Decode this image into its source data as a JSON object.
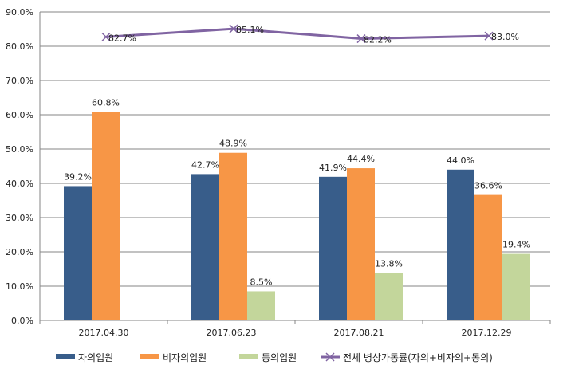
{
  "chart_data": {
    "type": "bar",
    "categories": [
      "2017.04.30",
      "2017.06.23",
      "2017.08.21",
      "2017.12.29"
    ],
    "ylim": [
      0,
      90
    ],
    "yticks": [
      "0.0%",
      "10.0%",
      "20.0%",
      "30.0%",
      "40.0%",
      "50.0%",
      "60.0%",
      "70.0%",
      "80.0%",
      "90.0%"
    ],
    "grid": true,
    "legend_position": "bottom",
    "series": [
      {
        "name": "자의입원",
        "type": "bar",
        "color": "#385d8a",
        "values": [
          39.2,
          42.7,
          41.9,
          44.0
        ],
        "labels": [
          "39.2%",
          "42.7%",
          "41.9%",
          "44.0%"
        ]
      },
      {
        "name": "비자의입원",
        "type": "bar",
        "color": "#f79646",
        "values": [
          60.8,
          48.9,
          44.4,
          36.6
        ],
        "labels": [
          "60.8%",
          "48.9%",
          "44.4%",
          "36.6%"
        ]
      },
      {
        "name": "동의입원",
        "type": "bar",
        "color": "#c3d69b",
        "values": [
          null,
          8.5,
          13.8,
          19.4
        ],
        "labels": [
          "",
          "8.5%",
          "13.8%",
          "19.4%"
        ]
      },
      {
        "name": "전체 병상가동률(자의+비자의+동의)",
        "type": "line",
        "color": "#8064a2",
        "marker": "x",
        "values": [
          82.7,
          85.1,
          82.2,
          83.0
        ],
        "labels": [
          "82.7%",
          "85.1%",
          "82.2%",
          "83.0%"
        ]
      }
    ]
  }
}
